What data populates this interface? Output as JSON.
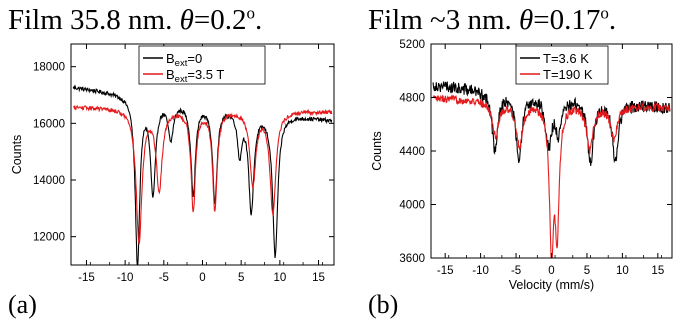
{
  "titles": {
    "a": {
      "prefix": "Film 35.8 nm. ",
      "theta": "θ",
      "value": "=0.2",
      "deg": "o",
      "suffix": "."
    },
    "b": {
      "prefix": "Film ~3 nm. ",
      "theta": "θ",
      "value": "=0.17",
      "deg": "o",
      "suffix": "."
    }
  },
  "panel_labels": {
    "a": "(a)",
    "b": "(b)"
  },
  "chart_data": [
    {
      "type": "line",
      "panel": "a",
      "xlabel": "",
      "ylabel": "Counts",
      "xlim": [
        -17,
        17
      ],
      "ylim": [
        11000,
        18800
      ],
      "xticks": [
        -15,
        -10,
        -5,
        0,
        5,
        10,
        15
      ],
      "yticks": [
        12000,
        14000,
        16000,
        18000
      ],
      "grid": false,
      "legend_placement": "top-center",
      "series": [
        {
          "name": "B",
          "name_sub": "ext",
          "name_tail": "=0",
          "color": "#000000",
          "baseline": 16700,
          "slope": -35,
          "noise": 70,
          "dips": [
            {
              "x": -8.4,
              "depth": 5900,
              "width": 0.35
            },
            {
              "x": -6.4,
              "depth": 3300,
              "width": 0.4
            },
            {
              "x": -4.1,
              "depth": 1300,
              "width": 0.4
            },
            {
              "x": -1.2,
              "depth": 3200,
              "width": 0.35
            },
            {
              "x": 1.6,
              "depth": 3300,
              "width": 0.35
            },
            {
              "x": 4.8,
              "depth": 1500,
              "width": 0.35
            },
            {
              "x": 6.3,
              "depth": 3500,
              "width": 0.4
            },
            {
              "x": 9.4,
              "depth": 5000,
              "width": 0.4
            }
          ]
        },
        {
          "name": "B",
          "name_sub": "ext",
          "name_tail": "=3.5 T",
          "color": "#e41a1c",
          "baseline": 16500,
          "slope": -5,
          "noise": 70,
          "dips": [
            {
              "x": -8.2,
              "depth": 4700,
              "width": 0.45
            },
            {
              "x": -5.6,
              "depth": 2800,
              "width": 0.45
            },
            {
              "x": -1.2,
              "depth": 3500,
              "width": 0.35
            },
            {
              "x": 1.6,
              "depth": 3500,
              "width": 0.35
            },
            {
              "x": 6.5,
              "depth": 2600,
              "width": 0.45
            },
            {
              "x": 9.1,
              "depth": 3600,
              "width": 0.45
            }
          ]
        }
      ]
    },
    {
      "type": "line",
      "panel": "b",
      "xlabel": "Velocity (mm/s)",
      "ylabel": "Counts",
      "xlim": [
        -17,
        17
      ],
      "ylim": [
        3600,
        5200
      ],
      "xticks": [
        -15,
        -10,
        -5,
        0,
        5,
        10,
        15
      ],
      "yticks": [
        3600,
        4000,
        4400,
        4800,
        5200
      ],
      "grid": false,
      "legend_placement": "top-left",
      "series": [
        {
          "name": "T=3.6 K",
          "color": "#000000",
          "baseline": 4810,
          "slope": -5,
          "noise": 45,
          "dips": [
            {
              "x": -8.0,
              "depth": 420,
              "width": 0.5
            },
            {
              "x": -4.6,
              "depth": 500,
              "width": 0.5
            },
            {
              "x": -0.4,
              "depth": 350,
              "width": 0.5
            },
            {
              "x": 1.0,
              "depth": 250,
              "width": 0.5
            },
            {
              "x": 5.5,
              "depth": 460,
              "width": 0.5
            },
            {
              "x": 9.0,
              "depth": 420,
              "width": 0.5
            }
          ]
        },
        {
          "name": "T=190 K",
          "color": "#e41a1c",
          "baseline": 4760,
          "slope": -2,
          "noise": 30,
          "dips": [
            {
              "x": -7.9,
              "depth": 250,
              "width": 0.55
            },
            {
              "x": -4.5,
              "depth": 330,
              "width": 0.55
            },
            {
              "x": 0.0,
              "depth": 1050,
              "width": 0.35
            },
            {
              "x": 0.8,
              "depth": 900,
              "width": 0.35
            },
            {
              "x": 5.4,
              "depth": 330,
              "width": 0.55
            },
            {
              "x": 8.8,
              "depth": 250,
              "width": 0.55
            }
          ]
        }
      ]
    }
  ]
}
